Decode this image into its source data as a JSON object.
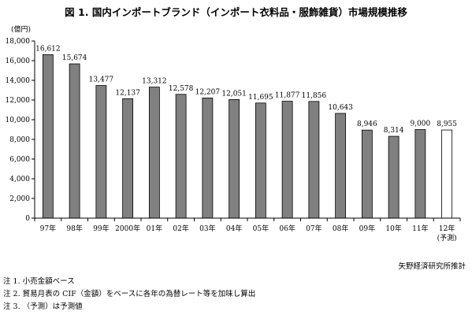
{
  "title": "図 1. 国内インポートブランド（インポート衣料品・服飾雑貨）市場規模推移",
  "source": "矢野経済研究所推計",
  "notes": [
    "注 1. 小売金額ベース",
    "注 2. 貿易月表の CIF（金額）をベースに各年の為替レート等を加味し算出",
    "注 3. （予測）は予測値"
  ],
  "colors": {
    "bar": "#808080",
    "forecast_bar": "#ffffff",
    "bar_stroke": "#000000",
    "axis": "#000000"
  },
  "chart_data": {
    "type": "bar",
    "title": "図 1. 国内インポートブランド（インポート衣料品・服飾雑貨）市場規模推移",
    "ylabel": "(億円)",
    "xlabel": "",
    "ylim": [
      0,
      18000
    ],
    "yticks": [
      0,
      2000,
      4000,
      6000,
      8000,
      10000,
      12000,
      14000,
      16000,
      18000
    ],
    "ytick_labels": [
      "0",
      "2,000",
      "4,000",
      "6,000",
      "8,000",
      "10,000",
      "12,000",
      "14,000",
      "16,000",
      "18,000"
    ],
    "grid": false,
    "categories": [
      "97年",
      "98年",
      "99年",
      "2000年",
      "01年",
      "02年",
      "03年",
      "04年",
      "05年",
      "06年",
      "07年",
      "08年",
      "09年",
      "10年",
      "11年",
      "12年"
    ],
    "category_sublabels": [
      "",
      "",
      "",
      "",
      "",
      "",
      "",
      "",
      "",
      "",
      "",
      "",
      "",
      "",
      "",
      "(予測)"
    ],
    "values": [
      16612,
      15674,
      13477,
      12137,
      13312,
      12578,
      12207,
      12051,
      11695,
      11877,
      11856,
      10643,
      8946,
      8314,
      9000,
      8955
    ],
    "value_labels": [
      "16,612",
      "15,674",
      "13,477",
      "12,137",
      "13,312",
      "12,578",
      "12,207",
      "12,051",
      "11,695",
      "11,877",
      "11,856",
      "10,643",
      "8,946",
      "8,314",
      "9,000",
      "8,955"
    ],
    "forecast": [
      false,
      false,
      false,
      false,
      false,
      false,
      false,
      false,
      false,
      false,
      false,
      false,
      false,
      false,
      false,
      true
    ]
  }
}
